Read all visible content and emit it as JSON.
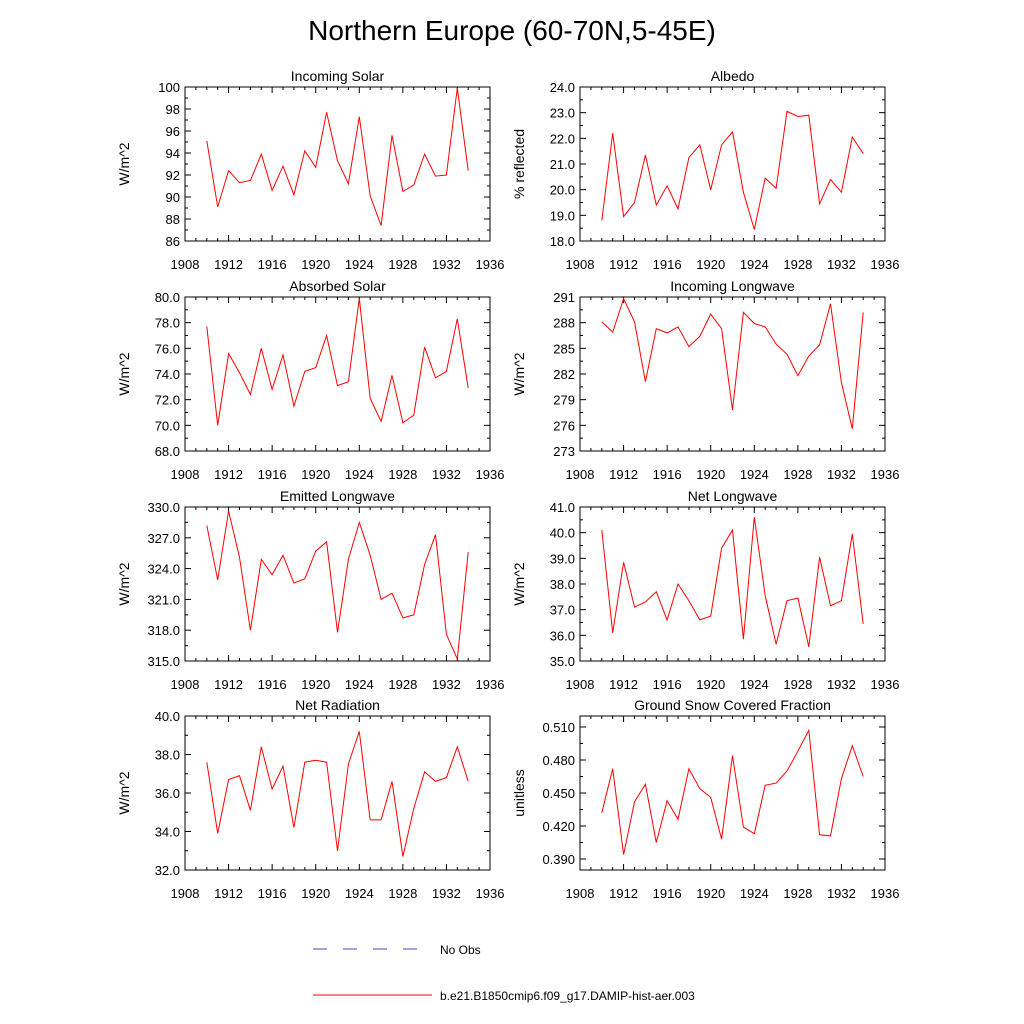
{
  "figure": {
    "title": "Northern Europe (60-70N,5-45E)",
    "legend": [
      {
        "label": "No Obs",
        "color": "#4a4ab0",
        "dashed": true
      },
      {
        "label": "b.e21.B1850cmip6.f09_g17.DAMIP-hist-aer.003",
        "color": "#ff0000",
        "dashed": false
      }
    ]
  },
  "chart_data": [
    {
      "type": "line",
      "title": "Incoming Solar",
      "ylabel": "W/m^2",
      "xlim": [
        1908,
        1936
      ],
      "xticks": [
        1908,
        1912,
        1916,
        1920,
        1924,
        1928,
        1932,
        1936
      ],
      "ylim": [
        86,
        100
      ],
      "yticks": [
        86,
        88,
        90,
        92,
        94,
        96,
        98,
        100
      ],
      "ytick_labels": [
        "86",
        "88",
        "90",
        "92",
        "94",
        "96",
        "98",
        "100"
      ],
      "series": [
        {
          "color": "#ff0000",
          "x": [
            1910,
            1911,
            1912,
            1913,
            1914,
            1915,
            1916,
            1917,
            1918,
            1919,
            1920,
            1921,
            1922,
            1923,
            1924,
            1925,
            1926,
            1927,
            1928,
            1929,
            1930,
            1931,
            1932,
            1933,
            1934
          ],
          "values": [
            95.1,
            89.1,
            92.4,
            91.3,
            91.5,
            93.9,
            90.6,
            92.8,
            90.2,
            94.2,
            92.7,
            97.7,
            93.3,
            91.2,
            97.3,
            90.1,
            87.4,
            95.6,
            90.5,
            91.1,
            93.9,
            91.9,
            92.0,
            99.9,
            92.4
          ]
        }
      ]
    },
    {
      "type": "line",
      "title": "Albedo",
      "ylabel": "% reflected",
      "xlim": [
        1908,
        1936
      ],
      "xticks": [
        1908,
        1912,
        1916,
        1920,
        1924,
        1928,
        1932,
        1936
      ],
      "ylim": [
        18,
        24
      ],
      "yticks": [
        18,
        19,
        20,
        21,
        22,
        23,
        24
      ],
      "ytick_labels": [
        "18.0",
        "19.0",
        "20.0",
        "21.0",
        "22.0",
        "23.0",
        "24.0"
      ],
      "series": [
        {
          "color": "#ff0000",
          "x": [
            1910,
            1911,
            1912,
            1913,
            1914,
            1915,
            1916,
            1917,
            1918,
            1919,
            1920,
            1921,
            1922,
            1923,
            1924,
            1925,
            1926,
            1927,
            1928,
            1929,
            1930,
            1931,
            1932,
            1933,
            1934
          ],
          "values": [
            18.8,
            22.2,
            18.95,
            19.5,
            21.35,
            19.4,
            20.15,
            19.25,
            21.25,
            21.75,
            20.0,
            21.75,
            22.25,
            19.9,
            18.45,
            20.45,
            20.05,
            23.05,
            22.85,
            22.9,
            19.45,
            20.4,
            19.9,
            22.05,
            21.4
          ]
        }
      ]
    },
    {
      "type": "line",
      "title": "Absorbed Solar",
      "ylabel": "W/m^2",
      "xlim": [
        1908,
        1936
      ],
      "xticks": [
        1908,
        1912,
        1916,
        1920,
        1924,
        1928,
        1932,
        1936
      ],
      "ylim": [
        68,
        80
      ],
      "yticks": [
        68,
        70,
        72,
        74,
        76,
        78,
        80
      ],
      "ytick_labels": [
        "68.0",
        "70.0",
        "72.0",
        "74.0",
        "76.0",
        "78.0",
        "80.0"
      ],
      "series": [
        {
          "color": "#ff0000",
          "x": [
            1910,
            1911,
            1912,
            1913,
            1914,
            1915,
            1916,
            1917,
            1918,
            1919,
            1920,
            1921,
            1922,
            1923,
            1924,
            1925,
            1926,
            1927,
            1928,
            1929,
            1930,
            1931,
            1932,
            1933,
            1934
          ],
          "values": [
            77.7,
            70.0,
            75.6,
            74.1,
            72.4,
            76.0,
            72.8,
            75.5,
            71.5,
            74.2,
            74.5,
            77.0,
            73.1,
            73.4,
            79.9,
            72.1,
            70.3,
            73.9,
            70.2,
            70.8,
            76.1,
            73.7,
            74.2,
            78.3,
            72.9
          ]
        }
      ]
    },
    {
      "type": "line",
      "title": "Incoming Longwave",
      "ylabel": "W/m^2",
      "xlim": [
        1908,
        1936
      ],
      "xticks": [
        1908,
        1912,
        1916,
        1920,
        1924,
        1928,
        1932,
        1936
      ],
      "ylim": [
        273,
        291
      ],
      "yticks": [
        273,
        276,
        279,
        282,
        285,
        288,
        291
      ],
      "ytick_labels": [
        "273",
        "276",
        "279",
        "282",
        "285",
        "288",
        "291"
      ],
      "series": [
        {
          "color": "#ff0000",
          "x": [
            1910,
            1911,
            1912,
            1913,
            1914,
            1915,
            1916,
            1917,
            1918,
            1919,
            1920,
            1921,
            1922,
            1923,
            1924,
            1925,
            1926,
            1927,
            1928,
            1929,
            1930,
            1931,
            1932,
            1933,
            1934
          ],
          "values": [
            288.1,
            286.9,
            290.8,
            288.1,
            281.1,
            287.3,
            286.8,
            287.5,
            285.2,
            286.4,
            289.0,
            287.3,
            277.8,
            289.2,
            287.9,
            287.5,
            285.5,
            284.3,
            281.8,
            284.1,
            285.4,
            290.2,
            281.0,
            275.6,
            289.2
          ]
        }
      ]
    },
    {
      "type": "line",
      "title": "Emitted Longwave",
      "ylabel": "W/m^2",
      "xlim": [
        1908,
        1936
      ],
      "xticks": [
        1908,
        1912,
        1916,
        1920,
        1924,
        1928,
        1932,
        1936
      ],
      "ylim": [
        315,
        330
      ],
      "yticks": [
        315,
        318,
        321,
        324,
        327,
        330
      ],
      "ytick_labels": [
        "315.0",
        "318.0",
        "321.0",
        "324.0",
        "327.0",
        "330.0"
      ],
      "series": [
        {
          "color": "#ff0000",
          "x": [
            1910,
            1911,
            1912,
            1913,
            1914,
            1915,
            1916,
            1917,
            1918,
            1919,
            1920,
            1921,
            1922,
            1923,
            1924,
            1925,
            1926,
            1927,
            1928,
            1929,
            1930,
            1931,
            1932,
            1933,
            1934
          ],
          "values": [
            328.2,
            322.9,
            329.6,
            325.1,
            318.0,
            324.9,
            323.4,
            325.3,
            322.6,
            323.0,
            325.7,
            326.6,
            317.8,
            324.9,
            328.5,
            325.3,
            321.0,
            321.6,
            319.2,
            319.5,
            324.4,
            327.3,
            317.6,
            315.2,
            325.6
          ]
        }
      ]
    },
    {
      "type": "line",
      "title": "Net Longwave",
      "ylabel": "W/m^2",
      "xlim": [
        1908,
        1936
      ],
      "xticks": [
        1908,
        1912,
        1916,
        1920,
        1924,
        1928,
        1932,
        1936
      ],
      "ylim": [
        35,
        41
      ],
      "yticks": [
        35,
        36,
        37,
        38,
        39,
        40,
        41
      ],
      "ytick_labels": [
        "35.0",
        "36.0",
        "37.0",
        "38.0",
        "39.0",
        "40.0",
        "41.0"
      ],
      "series": [
        {
          "color": "#ff0000",
          "x": [
            1910,
            1911,
            1912,
            1913,
            1914,
            1915,
            1916,
            1917,
            1918,
            1919,
            1920,
            1921,
            1922,
            1923,
            1924,
            1925,
            1926,
            1927,
            1928,
            1929,
            1930,
            1931,
            1932,
            1933,
            1934
          ],
          "values": [
            40.1,
            36.1,
            38.85,
            37.1,
            37.3,
            37.7,
            36.6,
            38.0,
            37.35,
            36.6,
            36.75,
            39.4,
            40.1,
            35.85,
            40.6,
            37.55,
            35.65,
            37.35,
            37.45,
            35.55,
            39.05,
            37.15,
            37.35,
            39.95,
            36.45
          ]
        }
      ]
    },
    {
      "type": "line",
      "title": "Net Radiation",
      "ylabel": "W/m^2",
      "xlim": [
        1908,
        1936
      ],
      "xticks": [
        1908,
        1912,
        1916,
        1920,
        1924,
        1928,
        1932,
        1936
      ],
      "ylim": [
        32,
        40
      ],
      "yticks": [
        32,
        34,
        36,
        38,
        40
      ],
      "ytick_labels": [
        "32.0",
        "34.0",
        "36.0",
        "38.0",
        "40.0"
      ],
      "series": [
        {
          "color": "#ff0000",
          "x": [
            1910,
            1911,
            1912,
            1913,
            1914,
            1915,
            1916,
            1917,
            1918,
            1919,
            1920,
            1921,
            1922,
            1923,
            1924,
            1925,
            1926,
            1927,
            1928,
            1929,
            1930,
            1931,
            1932,
            1933,
            1934
          ],
          "values": [
            37.6,
            33.9,
            36.7,
            36.9,
            35.1,
            38.4,
            36.2,
            37.4,
            34.2,
            37.6,
            37.7,
            37.6,
            33.0,
            37.5,
            39.2,
            34.6,
            34.6,
            36.6,
            32.7,
            35.2,
            37.1,
            36.6,
            36.8,
            38.4,
            36.6
          ]
        }
      ]
    },
    {
      "type": "line",
      "title": "Ground Snow Covered Fraction",
      "ylabel": "unitless",
      "xlim": [
        1908,
        1936
      ],
      "xticks": [
        1908,
        1912,
        1916,
        1920,
        1924,
        1928,
        1932,
        1936
      ],
      "ylim": [
        0.38,
        0.52
      ],
      "yticks": [
        0.39,
        0.42,
        0.45,
        0.48,
        0.51
      ],
      "ytick_labels": [
        "0.390",
        "0.420",
        "0.450",
        "0.480",
        "0.510"
      ],
      "series": [
        {
          "color": "#ff0000",
          "x": [
            1910,
            1911,
            1912,
            1913,
            1914,
            1915,
            1916,
            1917,
            1918,
            1919,
            1920,
            1921,
            1922,
            1923,
            1924,
            1925,
            1926,
            1927,
            1928,
            1929,
            1930,
            1931,
            1932,
            1933,
            1934
          ],
          "values": [
            0.432,
            0.472,
            0.394,
            0.442,
            0.458,
            0.405,
            0.443,
            0.426,
            0.472,
            0.454,
            0.446,
            0.408,
            0.484,
            0.419,
            0.413,
            0.457,
            0.459,
            0.47,
            0.488,
            0.507,
            0.412,
            0.411,
            0.463,
            0.493,
            0.465
          ]
        }
      ]
    }
  ]
}
